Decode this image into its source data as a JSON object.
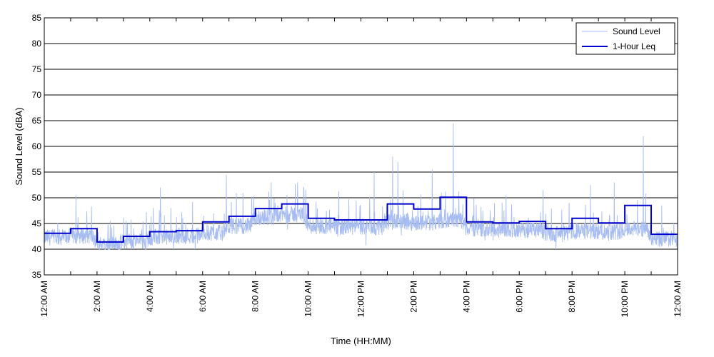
{
  "chart_data": {
    "type": "line",
    "title": "",
    "xlabel": "Time (HH:MM)",
    "ylabel": "Sound Level (dBA)",
    "ylim": [
      35,
      85
    ],
    "yticks": [
      35,
      40,
      45,
      50,
      55,
      60,
      65,
      70,
      75,
      80,
      85
    ],
    "xlim": [
      0,
      24
    ],
    "xtick_labels": [
      "12:00 AM",
      "2:00 AM",
      "4:00 AM",
      "6:00 AM",
      "8:00 AM",
      "10:00 AM",
      "12:00 PM",
      "2:00 PM",
      "4:00 PM",
      "6:00 PM",
      "8:00 PM",
      "10:00 PM",
      "12:00 AM"
    ],
    "grid": "horizontal",
    "legend": {
      "placement": "top-right",
      "entries": [
        "Sound Level",
        "1-Hour Leq"
      ]
    },
    "series": [
      {
        "name": "Sound Level",
        "color": "#a7bdf2",
        "style": "thin noisy line",
        "hourly_baseline": [
          42.3,
          42.6,
          41.0,
          41.5,
          42.3,
          42.6,
          43.2,
          44.5,
          46.2,
          46.8,
          44.5,
          44.3,
          44.3,
          45.3,
          45.2,
          45.6,
          44.0,
          43.8,
          43.7,
          43.0,
          43.5,
          43.4,
          44.0,
          42.0
        ],
        "peaks": [
          {
            "x": 1.2,
            "y": 50.5
          },
          {
            "x": 2.5,
            "y": 45.5
          },
          {
            "x": 4.4,
            "y": 52.0
          },
          {
            "x": 6.9,
            "y": 54.5
          },
          {
            "x": 8.6,
            "y": 53.0
          },
          {
            "x": 9.6,
            "y": 53.0
          },
          {
            "x": 12.5,
            "y": 55.0
          },
          {
            "x": 13.2,
            "y": 58.0
          },
          {
            "x": 13.4,
            "y": 57.0
          },
          {
            "x": 14.7,
            "y": 55.5
          },
          {
            "x": 15.5,
            "y": 64.5
          },
          {
            "x": 17.5,
            "y": 50.5
          },
          {
            "x": 18.9,
            "y": 51.5
          },
          {
            "x": 20.7,
            "y": 52.5
          },
          {
            "x": 21.6,
            "y": 53.0
          },
          {
            "x": 22.7,
            "y": 62.0
          },
          {
            "x": 23.4,
            "y": 48.5
          }
        ]
      },
      {
        "name": "1-Hour Leq",
        "color": "#0000cc",
        "style": "step",
        "hours": [
          0,
          1,
          2,
          3,
          4,
          5,
          6,
          7,
          8,
          9,
          10,
          11,
          12,
          13,
          14,
          15,
          16,
          17,
          18,
          19,
          20,
          21,
          22,
          23
        ],
        "values": [
          43.1,
          44.0,
          41.4,
          42.5,
          43.4,
          43.6,
          45.3,
          46.4,
          47.9,
          48.8,
          46.0,
          45.7,
          45.7,
          48.8,
          47.8,
          50.1,
          45.3,
          45.1,
          45.4,
          44.0,
          46.0,
          45.1,
          48.5,
          42.9
        ]
      }
    ]
  }
}
